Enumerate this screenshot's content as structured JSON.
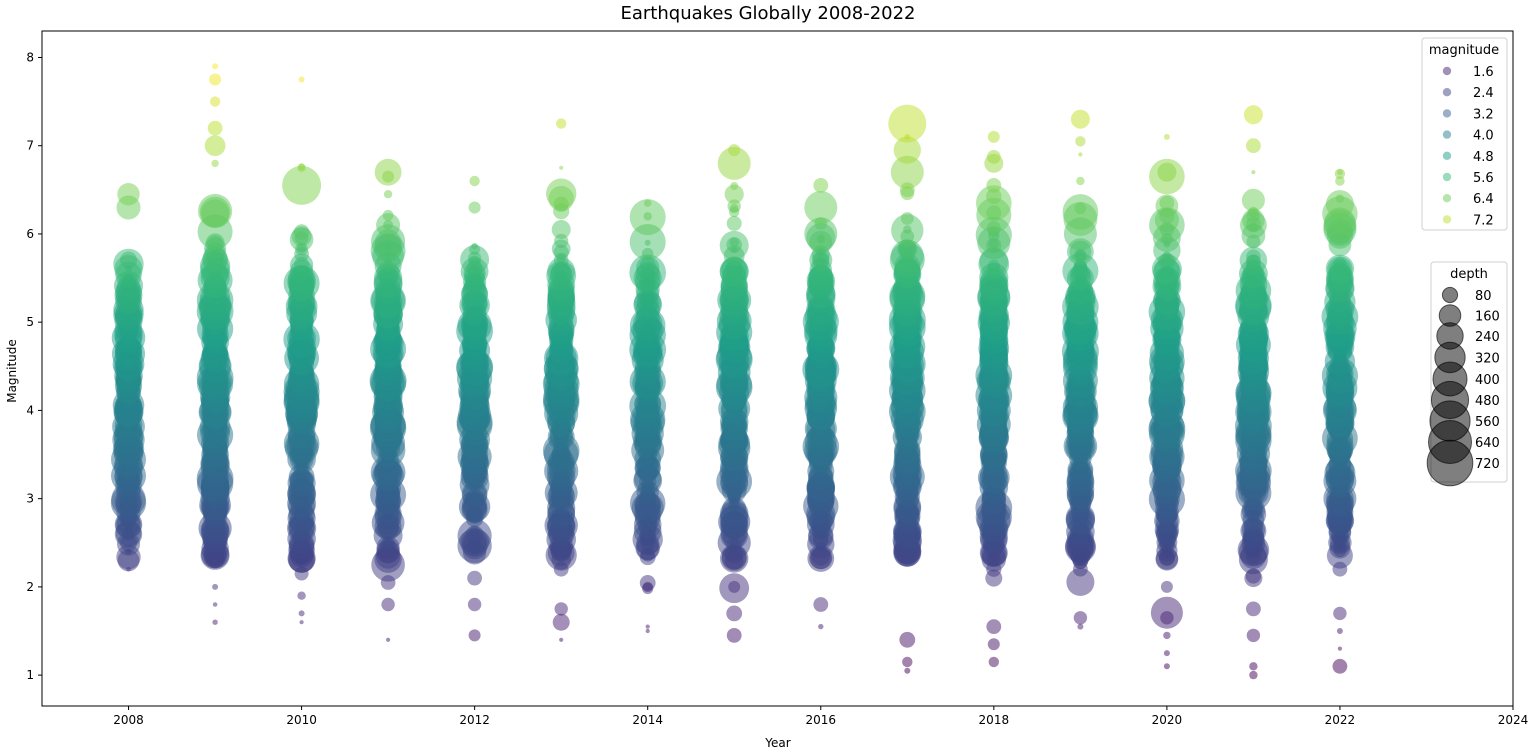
{
  "chart_data": {
    "type": "scatter",
    "title": "Earthquakes Globally 2008-2022",
    "xlabel": "Year",
    "ylabel": "Magnitude",
    "xlim": [
      2007,
      2024
    ],
    "ylim": [
      0.65,
      8.3
    ],
    "x_ticks": [
      "2008",
      "2010",
      "2012",
      "2014",
      "2016",
      "2018",
      "2020",
      "2022",
      "2024"
    ],
    "y_ticks": [
      "1",
      "2",
      "3",
      "4",
      "5",
      "6",
      "7",
      "8"
    ],
    "color_encoding": "magnitude",
    "size_encoding": "depth",
    "colormap": "viridis",
    "alpha": 0.5,
    "grid": false,
    "years": [
      {
        "year": 2008,
        "min": 2.15,
        "max": 6.45,
        "density": 0.55,
        "outliers": [
          [
            2.2,
            6
          ],
          [
            2.4,
            10
          ],
          [
            2.65,
            18
          ],
          [
            3.0,
            12
          ],
          [
            3.4,
            30
          ],
          [
            3.9,
            120
          ],
          [
            4.5,
            200
          ],
          [
            5.4,
            150
          ],
          [
            5.6,
            220
          ],
          [
            6.3,
            160
          ],
          [
            6.45,
            140
          ]
        ]
      },
      {
        "year": 2009,
        "min": 1.6,
        "max": 7.9,
        "density": 0.85,
        "outliers": [
          [
            1.6,
            8
          ],
          [
            1.8,
            6
          ],
          [
            2.0,
            10
          ],
          [
            2.3,
            40
          ],
          [
            2.9,
            200
          ],
          [
            3.6,
            150
          ],
          [
            4.1,
            220
          ],
          [
            5.9,
            100
          ],
          [
            6.25,
            260
          ],
          [
            6.8,
            15
          ],
          [
            7.0,
            120
          ],
          [
            7.2,
            60
          ],
          [
            7.5,
            30
          ],
          [
            7.75,
            40
          ],
          [
            7.9,
            10
          ]
        ]
      },
      {
        "year": 2010,
        "min": 1.6,
        "max": 7.75,
        "density": 0.75,
        "outliers": [
          [
            1.6,
            5
          ],
          [
            1.7,
            10
          ],
          [
            1.9,
            20
          ],
          [
            2.55,
            100
          ],
          [
            3.2,
            160
          ],
          [
            3.9,
            260
          ],
          [
            5.3,
            200
          ],
          [
            5.5,
            160
          ],
          [
            6.55,
            420
          ],
          [
            6.75,
            20
          ],
          [
            7.75,
            10
          ]
        ]
      },
      {
        "year": 2011,
        "min": 1.4,
        "max": 6.7,
        "density": 0.8,
        "outliers": [
          [
            1.4,
            5
          ],
          [
            1.8,
            50
          ],
          [
            2.05,
            60
          ],
          [
            3.1,
            140
          ],
          [
            3.8,
            200
          ],
          [
            4.4,
            260
          ],
          [
            5.2,
            150
          ],
          [
            5.9,
            200
          ],
          [
            6.1,
            160
          ],
          [
            6.45,
            20
          ],
          [
            6.65,
            40
          ],
          [
            6.7,
            200
          ]
        ]
      },
      {
        "year": 2012,
        "min": 1.45,
        "max": 6.6,
        "density": 0.65,
        "outliers": [
          [
            1.45,
            40
          ],
          [
            1.8,
            50
          ],
          [
            2.1,
            60
          ],
          [
            3.0,
            100
          ],
          [
            3.9,
            150
          ],
          [
            4.8,
            120
          ],
          [
            5.2,
            140
          ],
          [
            5.45,
            100
          ],
          [
            6.3,
            40
          ],
          [
            6.6,
            30
          ]
        ]
      },
      {
        "year": 2013,
        "min": 1.4,
        "max": 7.25,
        "density": 0.7,
        "outliers": [
          [
            1.4,
            5
          ],
          [
            1.6,
            80
          ],
          [
            1.75,
            50
          ],
          [
            2.2,
            60
          ],
          [
            2.7,
            90
          ],
          [
            3.2,
            80
          ],
          [
            4.3,
            160
          ],
          [
            4.9,
            200
          ],
          [
            6.05,
            100
          ],
          [
            6.4,
            180
          ],
          [
            6.75,
            5
          ],
          [
            7.25,
            30
          ]
        ]
      },
      {
        "year": 2014,
        "min": 1.5,
        "max": 6.35,
        "density": 0.55,
        "outliers": [
          [
            1.5,
            5
          ],
          [
            1.55,
            5
          ],
          [
            2.0,
            30
          ],
          [
            3.3,
            40
          ],
          [
            4.3,
            160
          ],
          [
            4.95,
            200
          ],
          [
            5.5,
            220
          ],
          [
            5.9,
            10
          ],
          [
            6.2,
            20
          ],
          [
            6.35,
            15
          ]
        ]
      },
      {
        "year": 2015,
        "min": 1.45,
        "max": 6.95,
        "density": 0.75,
        "outliers": [
          [
            1.45,
            60
          ],
          [
            1.7,
            70
          ],
          [
            2.0,
            40
          ],
          [
            3.15,
            140
          ],
          [
            3.8,
            180
          ],
          [
            4.7,
            140
          ],
          [
            5.75,
            120
          ],
          [
            6.25,
            30
          ],
          [
            6.8,
            300
          ],
          [
            6.95,
            40
          ]
        ]
      },
      {
        "year": 2016,
        "min": 1.55,
        "max": 6.55,
        "density": 0.7,
        "outliers": [
          [
            1.55,
            8
          ],
          [
            1.8,
            60
          ],
          [
            2.7,
            100
          ],
          [
            3.5,
            200
          ],
          [
            4.4,
            260
          ],
          [
            5.5,
            180
          ],
          [
            6.0,
            300
          ],
          [
            6.3,
            300
          ],
          [
            6.55,
            60
          ]
        ]
      },
      {
        "year": 2017,
        "min": 1.05,
        "max": 7.25,
        "density": 0.9,
        "outliers": [
          [
            1.05,
            10
          ],
          [
            1.15,
            30
          ],
          [
            1.4,
            70
          ],
          [
            2.5,
            90
          ],
          [
            3.95,
            200
          ],
          [
            5.0,
            260
          ],
          [
            5.75,
            300
          ],
          [
            6.05,
            20
          ],
          [
            6.5,
            60
          ],
          [
            6.7,
            300
          ],
          [
            7.1,
            10
          ],
          [
            7.25,
            400
          ]
        ]
      },
      {
        "year": 2018,
        "min": 1.15,
        "max": 7.1,
        "density": 0.85,
        "outliers": [
          [
            1.15,
            30
          ],
          [
            1.35,
            40
          ],
          [
            1.55,
            60
          ],
          [
            2.1,
            80
          ],
          [
            3.0,
            150
          ],
          [
            3.7,
            250
          ],
          [
            4.6,
            230
          ],
          [
            5.9,
            300
          ],
          [
            6.35,
            350
          ],
          [
            6.55,
            60
          ],
          [
            6.8,
            100
          ],
          [
            7.1,
            40
          ]
        ]
      },
      {
        "year": 2019,
        "min": 1.55,
        "max": 7.3,
        "density": 0.85,
        "outliers": [
          [
            1.55,
            10
          ],
          [
            1.65,
            50
          ],
          [
            2.2,
            60
          ],
          [
            3.3,
            180
          ],
          [
            4.0,
            200
          ],
          [
            4.9,
            150
          ],
          [
            5.8,
            200
          ],
          [
            6.0,
            300
          ],
          [
            6.25,
            350
          ],
          [
            6.6,
            20
          ],
          [
            6.9,
            5
          ],
          [
            7.05,
            30
          ],
          [
            7.3,
            100
          ]
        ]
      },
      {
        "year": 2020,
        "min": 1.1,
        "max": 7.1,
        "density": 0.85,
        "outliers": [
          [
            1.1,
            10
          ],
          [
            1.25,
            10
          ],
          [
            1.45,
            15
          ],
          [
            1.65,
            50
          ],
          [
            2.0,
            40
          ],
          [
            3.35,
            230
          ],
          [
            4.0,
            300
          ],
          [
            5.25,
            200
          ],
          [
            5.6,
            250
          ],
          [
            6.1,
            350
          ],
          [
            6.35,
            60
          ],
          [
            6.65,
            350
          ],
          [
            6.7,
            100
          ],
          [
            7.1,
            10
          ]
        ]
      },
      {
        "year": 2021,
        "min": 1.0,
        "max": 7.35,
        "density": 0.95,
        "outliers": [
          [
            1.0,
            20
          ],
          [
            1.1,
            20
          ],
          [
            1.45,
            50
          ],
          [
            1.75,
            60
          ],
          [
            2.1,
            90
          ],
          [
            2.65,
            150
          ],
          [
            3.2,
            300
          ],
          [
            4.0,
            300
          ],
          [
            4.5,
            250
          ],
          [
            5.55,
            230
          ],
          [
            6.1,
            200
          ],
          [
            6.25,
            30
          ],
          [
            6.7,
            5
          ],
          [
            7.0,
            60
          ],
          [
            7.35,
            100
          ]
        ]
      },
      {
        "year": 2022,
        "min": 1.1,
        "max": 6.7,
        "density": 0.75,
        "outliers": [
          [
            1.1,
            60
          ],
          [
            1.3,
            5
          ],
          [
            1.5,
            10
          ],
          [
            1.7,
            50
          ],
          [
            2.2,
            60
          ],
          [
            3.0,
            300
          ],
          [
            3.2,
            300
          ],
          [
            4.0,
            230
          ],
          [
            5.0,
            200
          ],
          [
            5.6,
            180
          ],
          [
            6.05,
            300
          ],
          [
            6.4,
            20
          ],
          [
            6.6,
            25
          ],
          [
            6.7,
            10
          ]
        ]
      }
    ],
    "legend_color": {
      "title": "magnitude",
      "placement": "top-right",
      "entries": [
        {
          "label": "1.6",
          "value": 1.6
        },
        {
          "label": "2.4",
          "value": 2.4
        },
        {
          "label": "3.2",
          "value": 3.2
        },
        {
          "label": "4.0",
          "value": 4.0
        },
        {
          "label": "4.8",
          "value": 4.8
        },
        {
          "label": "5.6",
          "value": 5.6
        },
        {
          "label": "6.4",
          "value": 6.4
        },
        {
          "label": "7.2",
          "value": 7.2
        }
      ]
    },
    "legend_size": {
      "title": "depth",
      "placement": "right",
      "marker_color": "#000000",
      "entries": [
        {
          "label": "80",
          "value": 80
        },
        {
          "label": "160",
          "value": 160
        },
        {
          "label": "240",
          "value": 240
        },
        {
          "label": "320",
          "value": 320
        },
        {
          "label": "400",
          "value": 400
        },
        {
          "label": "480",
          "value": 480
        },
        {
          "label": "560",
          "value": 560
        },
        {
          "label": "640",
          "value": 640
        },
        {
          "label": "720",
          "value": 720
        }
      ]
    }
  }
}
